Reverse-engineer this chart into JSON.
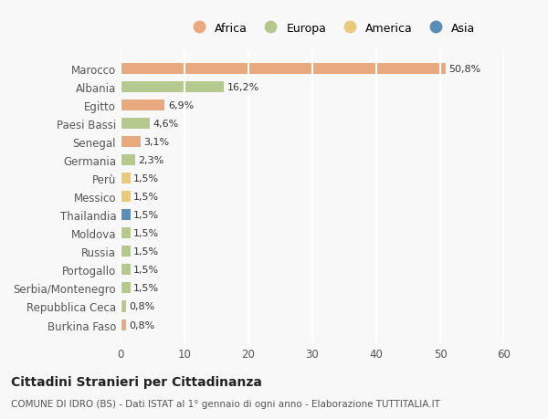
{
  "categories": [
    "Burkina Faso",
    "Repubblica Ceca",
    "Serbia/Montenegro",
    "Portogallo",
    "Russia",
    "Moldova",
    "Thailandia",
    "Messico",
    "Perù",
    "Germania",
    "Senegal",
    "Paesi Bassi",
    "Egitto",
    "Albania",
    "Marocco"
  ],
  "values": [
    0.8,
    0.8,
    1.5,
    1.5,
    1.5,
    1.5,
    1.5,
    1.5,
    1.5,
    2.3,
    3.1,
    4.6,
    6.9,
    16.2,
    50.8
  ],
  "colors": [
    "#e8a97e",
    "#b5c98e",
    "#b5c98e",
    "#b5c98e",
    "#b5c98e",
    "#b5c98e",
    "#5b8db8",
    "#e8c97e",
    "#e8c97e",
    "#b5c98e",
    "#e8a97e",
    "#b5c98e",
    "#e8a97e",
    "#b5c98e",
    "#e8a97e"
  ],
  "labels": [
    "0,8%",
    "0,8%",
    "1,5%",
    "1,5%",
    "1,5%",
    "1,5%",
    "1,5%",
    "1,5%",
    "1,5%",
    "2,3%",
    "3,1%",
    "4,6%",
    "6,9%",
    "16,2%",
    "50,8%"
  ],
  "legend": [
    {
      "label": "Africa",
      "color": "#e8a97e"
    },
    {
      "label": "Europa",
      "color": "#b5c98e"
    },
    {
      "label": "America",
      "color": "#e8c97e"
    },
    {
      "label": "Asia",
      "color": "#5b8db8"
    }
  ],
  "xlim": [
    0,
    60
  ],
  "xticks": [
    0,
    10,
    20,
    30,
    40,
    50,
    60
  ],
  "title": "Cittadini Stranieri per Cittadinanza",
  "subtitle": "COMUNE DI IDRO (BS) - Dati ISTAT al 1° gennaio di ogni anno - Elaborazione TUTTITALIA.IT",
  "bg_color": "#f8f8f8",
  "grid_color": "#ffffff",
  "bar_height": 0.6
}
